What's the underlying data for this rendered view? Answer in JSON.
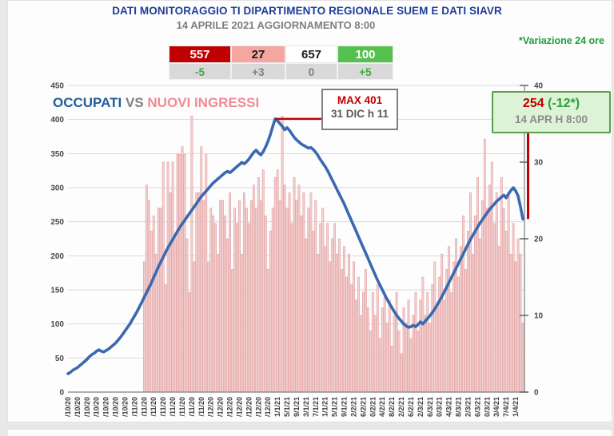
{
  "page": {
    "title": "DATI MONITORAGGIO TI DIPARTIMENTO REGIONALE SUEM E DATI SIAVR",
    "subtitle": "14 APRILE 2021 AGGIORNAMENTO 8:00",
    "variation_note": "*Variazione 24 ore"
  },
  "summary_table": {
    "delta_row_bg": "#d9d9d9",
    "columns": [
      {
        "value": "557",
        "delta": "-5",
        "value_bg": "#c00000",
        "value_fg": "#ffffff",
        "delta_fg": "#3faa35"
      },
      {
        "value": "27",
        "delta": "+3",
        "value_bg": "#f6a6a1",
        "value_fg": "#1a1a1a",
        "delta_fg": "#7f7f7f"
      },
      {
        "value": "657",
        "delta": "0",
        "value_bg": "#ffffff",
        "value_fg": "#1a1a1a",
        "delta_fg": "#7f7f7f"
      },
      {
        "value": "100",
        "delta": "+5",
        "value_bg": "#54c14e",
        "value_fg": "#ffffff",
        "delta_fg": "#3faa35"
      }
    ]
  },
  "chart_legend": {
    "occupati": "OCCUPATI",
    "vs": " VS ",
    "nuovi": "NUOVI INGRESSI"
  },
  "annotations": {
    "max_box": {
      "line1": "MAX 401",
      "line2": "31 DIC h 11"
    },
    "latest_box": {
      "value": "254",
      "delta": " (-12*)",
      "line2": "14 APR H 8:00"
    }
  },
  "chart_data": {
    "type": "combo bar+line",
    "title": "OCCUPATI VS NUOVI INGRESSI",
    "grid": true,
    "left_axis": {
      "label": "OCCUPATI",
      "min": 0,
      "max": 450,
      "step": 50
    },
    "right_axis": {
      "label": "NUOVI INGRESSI",
      "min": 0,
      "max": 40,
      "step": 10
    },
    "x_tick_every_days": 4,
    "x_tick_labels": [
      "/10/20",
      "/10/20",
      "/10/20",
      "/10/20",
      "/10/20",
      "/10/20",
      "/10/20",
      "/11/20",
      "/11/20",
      "/11/20",
      "/11/20",
      "/11/20",
      "/11/20",
      "/11/20",
      "/11/20",
      "/12/20",
      "/12/20",
      "/12/20",
      "/12/20",
      "/12/20",
      "/12/20",
      "/12/20",
      "1/1/21",
      "5/1/21",
      "9/1/21",
      "3/1/21",
      "7/1/21",
      "1/1/21",
      "5/1/21",
      "9/1/21",
      "2/2/21",
      "6/2/21",
      "0/2/21",
      "4/2/21",
      "8/2/21",
      "2/2/21",
      "6/2/21",
      "2/3/21",
      "6/3/21",
      "0/3/21",
      "4/3/21",
      "8/3/21",
      "2/3/21",
      "6/3/21",
      "0/3/21",
      "3/4/21",
      "7/4/21",
      "1/4/21"
    ],
    "max_point": {
      "day_index": 87,
      "value": 401,
      "label": "MAX 401",
      "date": "31 DIC h 11"
    },
    "latest_point": {
      "day_index": 191,
      "value": 254,
      "variation_24h": -12,
      "date": "14 APR H 8:00"
    },
    "colors": {
      "line": "#3b69b1",
      "bar_fill": "#f5d3d3",
      "bar_stroke": "#e09b9b",
      "grid": "#d9d9d9",
      "axis": "#7f7f7f",
      "axis_text": "#474747",
      "annotation_red": "#c00000"
    },
    "series": [
      {
        "name": "OCCUPATI",
        "type": "line",
        "axis": "left",
        "values": [
          27,
          29,
          32,
          34,
          36,
          39,
          42,
          45,
          48,
          52,
          55,
          57,
          60,
          62,
          60,
          59,
          61,
          63,
          66,
          69,
          72,
          76,
          80,
          85,
          90,
          95,
          100,
          106,
          112,
          118,
          125,
          132,
          139,
          146,
          153,
          160,
          168,
          176,
          184,
          191,
          198,
          205,
          212,
          218,
          224,
          230,
          236,
          242,
          247,
          252,
          257,
          262,
          267,
          272,
          277,
          282,
          287,
          291,
          295,
          299,
          303,
          307,
          310,
          313,
          316,
          319,
          322,
          324,
          322,
          325,
          328,
          331,
          334,
          337,
          335,
          338,
          342,
          347,
          352,
          355,
          351,
          348,
          353,
          360,
          368,
          378,
          390,
          401,
          398,
          394,
          390,
          385,
          388,
          384,
          379,
          374,
          370,
          367,
          364,
          362,
          360,
          358,
          359,
          356,
          352,
          347,
          341,
          336,
          331,
          325,
          318,
          311,
          304,
          297,
          290,
          283,
          276,
          268,
          260,
          252,
          244,
          236,
          228,
          220,
          212,
          204,
          196,
          188,
          180,
          172,
          164,
          157,
          150,
          143,
          136,
          130,
          124,
          118,
          113,
          108,
          104,
          100,
          97,
          95,
          96,
          98,
          96,
          99,
          103,
          100,
          104,
          108,
          112,
          117,
          122,
          128,
          134,
          140,
          147,
          154,
          161,
          168,
          175,
          182,
          189,
          196,
          203,
          210,
          217,
          224,
          230,
          236,
          242,
          248,
          253,
          258,
          263,
          268,
          272,
          276,
          280,
          283,
          286,
          289,
          285,
          291,
          296,
          300,
          295,
          288,
          272,
          254
        ]
      },
      {
        "name": "NUOVI INGRESSI",
        "type": "bar",
        "axis": "right",
        "values": [
          0,
          0,
          0,
          0,
          0,
          0,
          0,
          0,
          0,
          0,
          0,
          0,
          0,
          0,
          0,
          0,
          0,
          0,
          0,
          0,
          0,
          0,
          0,
          0,
          0,
          0,
          0,
          0,
          0,
          0,
          0,
          0,
          17,
          27,
          25,
          21,
          23,
          18,
          24,
          24,
          30,
          14,
          30,
          26,
          30,
          20,
          31,
          31,
          32,
          31,
          20,
          13,
          36,
          17,
          26,
          26,
          32,
          25,
          31,
          17,
          24,
          23,
          22,
          18,
          25,
          25,
          23,
          20,
          26,
          16,
          24,
          22,
          25,
          18,
          26,
          24,
          22,
          25,
          27,
          24,
          28,
          25,
          29,
          23,
          16,
          21,
          24,
          28,
          29,
          25,
          36,
          27,
          24,
          26,
          22,
          28,
          25,
          27,
          23,
          26,
          20,
          24,
          26,
          21,
          25,
          18,
          22,
          24,
          19,
          22,
          17,
          20,
          22,
          18,
          20,
          16,
          19,
          15,
          18,
          14,
          17,
          12,
          15,
          10,
          13,
          16,
          11,
          8,
          13,
          10,
          14,
          7,
          11,
          13,
          9,
          12,
          6,
          10,
          13,
          8,
          5,
          11,
          9,
          12,
          7,
          10,
          13,
          8,
          12,
          15,
          10,
          13,
          9,
          14,
          17,
          11,
          15,
          18,
          12,
          16,
          19,
          13,
          17,
          20,
          15,
          19,
          23,
          16,
          21,
          26,
          18,
          23,
          28,
          20,
          25,
          33,
          24,
          27,
          30,
          22,
          26,
          19,
          28,
          24,
          21,
          26,
          18,
          22,
          17,
          20,
          18,
          9
        ]
      }
    ]
  }
}
